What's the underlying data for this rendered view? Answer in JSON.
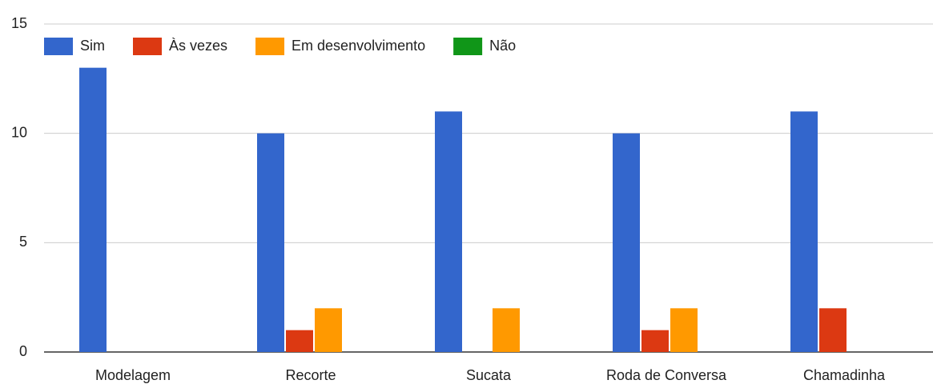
{
  "chart_data": {
    "type": "bar",
    "categories": [
      "Modelagem",
      "Recorte",
      "Sucata",
      "Roda de Conversa",
      "Chamadinha"
    ],
    "series": [
      {
        "name": "Sim",
        "color": "#3366cc",
        "values": [
          13,
          10,
          11,
          10,
          11
        ]
      },
      {
        "name": "Às vezes",
        "color": "#dc3912",
        "values": [
          0,
          1,
          0,
          1,
          2
        ]
      },
      {
        "name": "Em desenvolvimento",
        "color": "#ff9900",
        "values": [
          0,
          2,
          2,
          2,
          0
        ]
      },
      {
        "name": "Não",
        "color": "#109618",
        "values": [
          0,
          0,
          0,
          0,
          0
        ]
      }
    ],
    "ylim": [
      0,
      15
    ],
    "yticks": [
      0,
      5,
      10,
      15
    ],
    "grid": true,
    "legend": "top"
  }
}
